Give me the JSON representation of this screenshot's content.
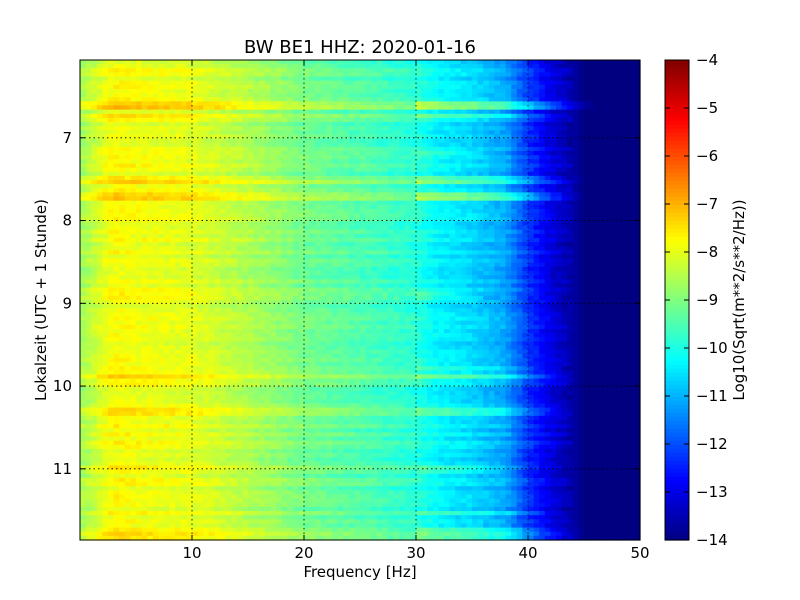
{
  "chart_data": {
    "type": "heatmap",
    "title": "BW BE1 HHZ: 2020-01-16",
    "xlabel": "Frequency [Hz]",
    "ylabel": "Lokalzeit (UTC + 1 Stunde)",
    "xlim": [
      0,
      50
    ],
    "ylim": [
      11.86,
      6.06
    ],
    "x_ticks": [
      10,
      20,
      30,
      40,
      50
    ],
    "y_ticks": [
      7,
      8,
      9,
      10,
      11
    ],
    "grid": true,
    "colormap": "jet",
    "colorbar": {
      "label": "Log10(Sqrt(m**2/s**2/Hz))",
      "range": [
        -14,
        -4
      ],
      "ticks": [
        -14,
        -13,
        -12,
        -11,
        -10,
        -9,
        -8,
        -7,
        -6,
        -5,
        -4
      ]
    },
    "spectrum_profile": [
      {
        "f": 0,
        "v": -8.7
      },
      {
        "f": 1.5,
        "v": -8.2
      },
      {
        "f": 3,
        "v": -7.75
      },
      {
        "f": 6,
        "v": -7.9
      },
      {
        "f": 10,
        "v": -8.0
      },
      {
        "f": 15,
        "v": -8.5
      },
      {
        "f": 20,
        "v": -9.1
      },
      {
        "f": 25,
        "v": -9.45
      },
      {
        "f": 30,
        "v": -9.85
      },
      {
        "f": 32,
        "v": -10.3
      },
      {
        "f": 35,
        "v": -10.6
      },
      {
        "f": 38,
        "v": -11.1
      },
      {
        "f": 40,
        "v": -12.2
      },
      {
        "f": 42,
        "v": -13.0
      },
      {
        "f": 44,
        "v": -13.6
      },
      {
        "f": 45,
        "v": -14.0
      },
      {
        "f": 50,
        "v": -14.0
      }
    ],
    "bands": [
      {
        "t": 6.58,
        "v": 1.1,
        "fmax": 46
      },
      {
        "t": 6.72,
        "v": 0.6,
        "fmax": 44
      },
      {
        "t": 7.16,
        "v": 0.5,
        "fmax": 38
      },
      {
        "t": 7.48,
        "v": 0.8,
        "fmax": 45
      },
      {
        "t": 7.68,
        "v": 1.0,
        "fmax": 45
      },
      {
        "t": 8.88,
        "v": 0.45,
        "fmax": 36
      },
      {
        "t": 9.75,
        "v": 0.5,
        "fmax": 44
      },
      {
        "t": 9.87,
        "v": 0.65,
        "fmax": 44
      },
      {
        "t": 10.28,
        "v": 0.55,
        "fmax": 44
      },
      {
        "t": 10.98,
        "v": 0.45,
        "fmax": 40
      },
      {
        "t": 11.52,
        "v": 0.5,
        "fmax": 44
      },
      {
        "t": 11.7,
        "v": 0.7,
        "fmax": 45
      },
      {
        "t": 11.78,
        "v": 0.75,
        "fmax": 45
      }
    ]
  }
}
